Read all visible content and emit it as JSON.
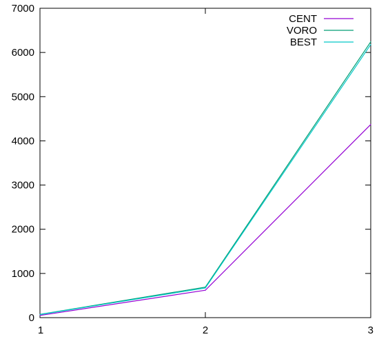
{
  "chart_data": {
    "type": "line",
    "title": "",
    "xlabel": "",
    "ylabel": "",
    "x": [
      1,
      2,
      3
    ],
    "xlim": [
      1,
      3
    ],
    "ylim": [
      0,
      7000
    ],
    "x_ticks": [
      "1",
      "2",
      "3"
    ],
    "y_ticks": [
      "0",
      "1000",
      "2000",
      "3000",
      "4000",
      "5000",
      "6000",
      "7000"
    ],
    "grid": false,
    "legend_position": "top-right",
    "series": [
      {
        "name": "CENT",
        "color": "#9400d3",
        "values": [
          50,
          620,
          4370
        ]
      },
      {
        "name": "VORO",
        "color": "#009e73",
        "values": [
          75,
          690,
          6240
        ]
      },
      {
        "name": "BEST",
        "color": "#00c8c8",
        "values": [
          70,
          670,
          6180
        ]
      }
    ]
  }
}
